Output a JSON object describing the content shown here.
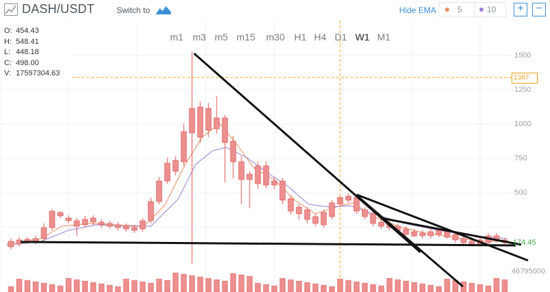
{
  "header": {
    "pair": "DASH/USDT",
    "switch_to_label": "Switch to",
    "hide_ema_label": "Hide EMA",
    "ema_fast": "5",
    "ema_slow": "10",
    "ema_fast_color": "#f08a5d",
    "ema_slow_color": "#9b7fd9",
    "zoom_in": "+",
    "zoom_out": "−"
  },
  "ohlc": {
    "open_label": "O:",
    "open": "454.43",
    "high_label": "H:",
    "high": "548.41",
    "low_label": "L:",
    "low": "448.18",
    "close_label": "C:",
    "close": "498.00",
    "volume_label": "V:",
    "volume": "17597304.63"
  },
  "intervals": [
    {
      "label": "m1"
    },
    {
      "label": "m3"
    },
    {
      "label": "m5"
    },
    {
      "label": "m15"
    },
    {
      "label": "m30"
    },
    {
      "label": "H1"
    },
    {
      "label": "H4"
    },
    {
      "label": "D1"
    },
    {
      "label": "W1"
    },
    {
      "label": "M1"
    }
  ],
  "active_interval": "W1",
  "y_axis": [
    "1500",
    "1250",
    "1000",
    "750",
    "500"
  ],
  "crosshair_price": "1387",
  "last_price": "174.45",
  "volume_max": "46795000",
  "colors": {
    "up": "#a6e39a",
    "up_border": "#4caf50",
    "down": "#ec8f8f",
    "down_border": "#d9534f",
    "crosshair": "#f0a020",
    "grid": "#eef1f4",
    "accent": "#3b8fd6"
  }
}
